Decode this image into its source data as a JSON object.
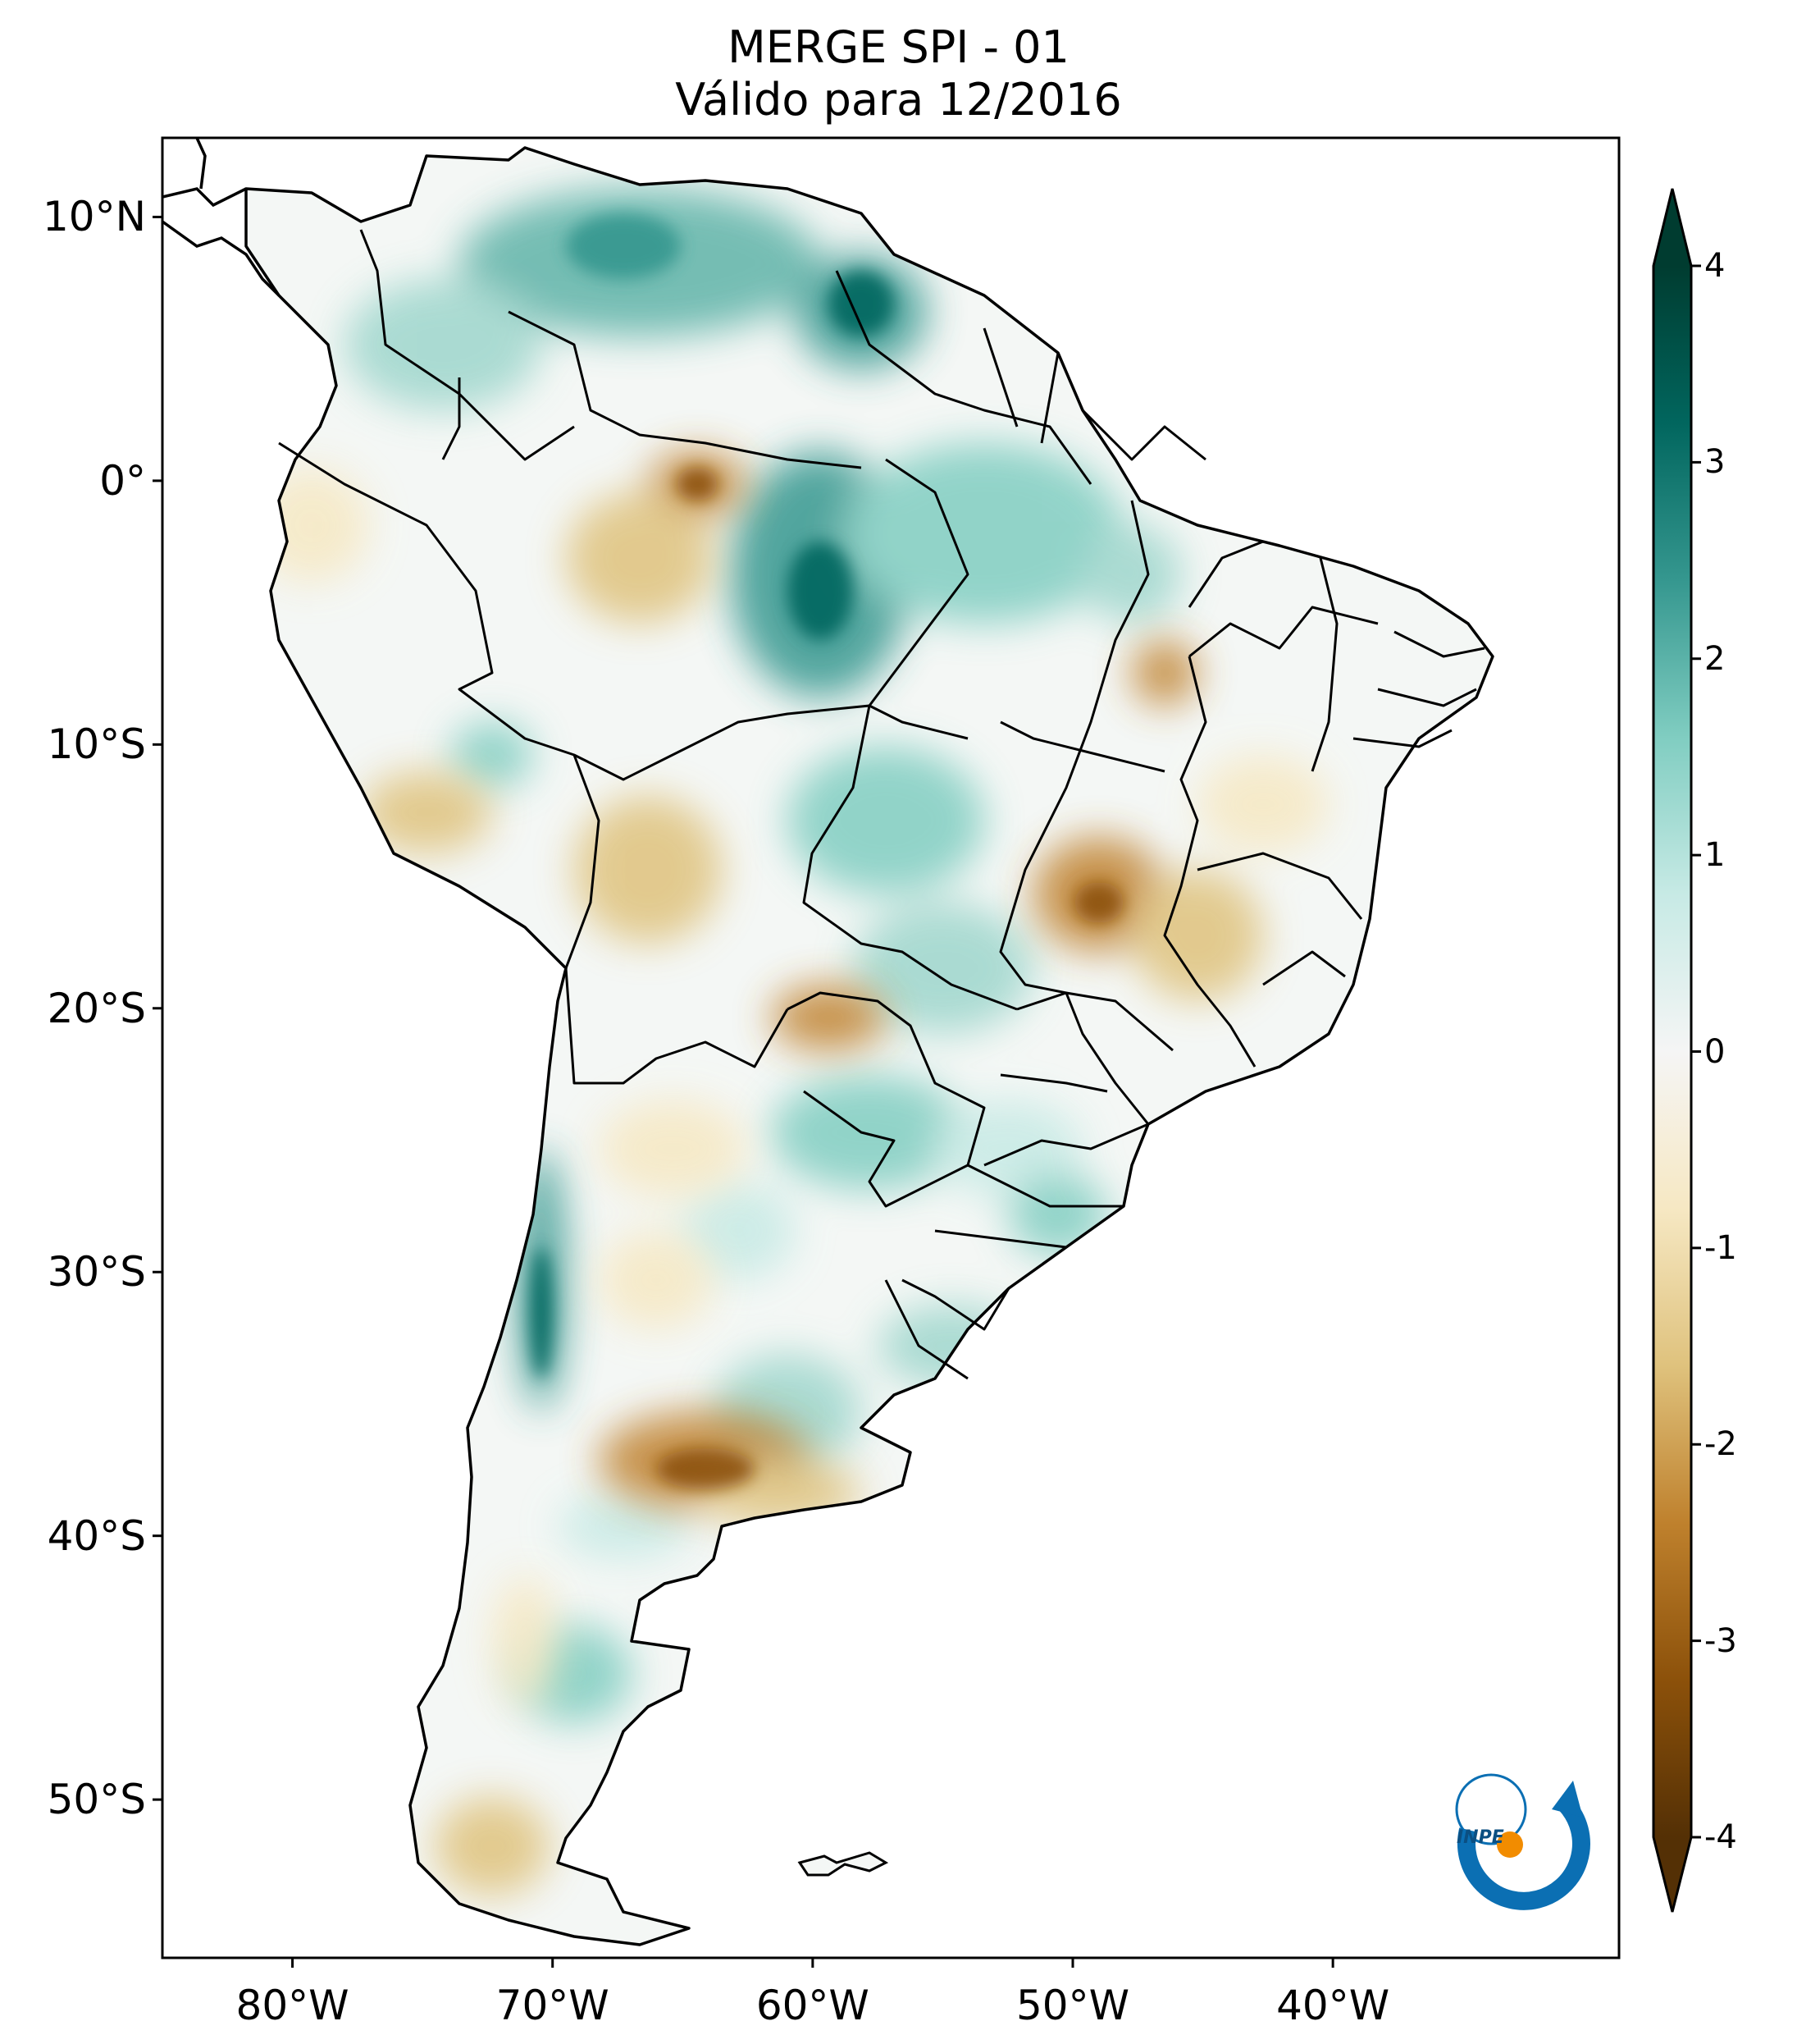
{
  "title": {
    "line1": "MERGE   SPI - 01",
    "line2": "Válido para 12/2016"
  },
  "map": {
    "extent": {
      "lon_min": -85,
      "lon_max": -29,
      "lat_min": -56,
      "lat_max": 13
    },
    "lat_ticks": [
      {
        "value": 10,
        "label": "10°N"
      },
      {
        "value": 0,
        "label": "0°"
      },
      {
        "value": -10,
        "label": "10°S"
      },
      {
        "value": -20,
        "label": "20°S"
      },
      {
        "value": -30,
        "label": "30°S"
      },
      {
        "value": -40,
        "label": "40°S"
      },
      {
        "value": -50,
        "label": "50°S"
      }
    ],
    "lon_ticks": [
      {
        "value": -80,
        "label": "80°W"
      },
      {
        "value": -70,
        "label": "70°W"
      },
      {
        "value": -60,
        "label": "60°W"
      },
      {
        "value": -50,
        "label": "50°W"
      },
      {
        "value": -40,
        "label": "40°W"
      }
    ]
  },
  "colorbar": {
    "min": -4,
    "max": 4,
    "extend": "both",
    "ticks": [
      "4",
      "3",
      "2",
      "1",
      "0",
      "-1",
      "-2",
      "-3",
      "-4"
    ],
    "colors": {
      "very_dry": "#543005",
      "dry": "#8c510a",
      "moderately_dry": "#bf812d",
      "slightly_dry": "#dfc27d",
      "near_dry": "#f6e8c3",
      "neutral": "#f5f5f5",
      "near_wet": "#c7eae5",
      "slightly_wet": "#80cdc1",
      "moderately_wet": "#35978f",
      "wet": "#01665e",
      "very_wet": "#003c30"
    }
  },
  "logo": {
    "text": "INPE"
  }
}
